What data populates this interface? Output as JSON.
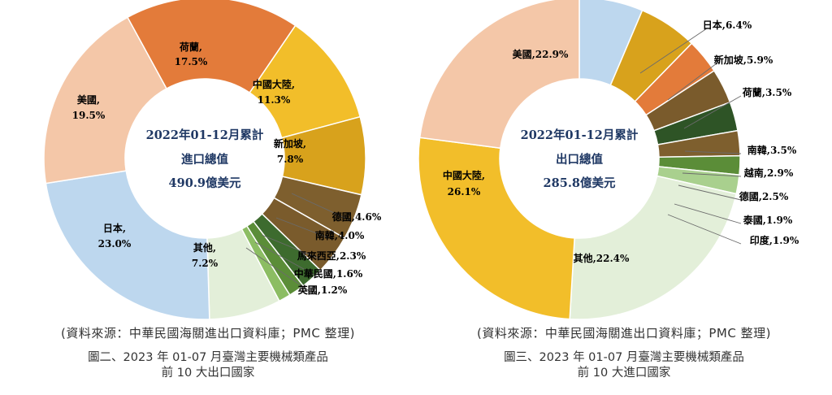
{
  "colors": {
    "荷蘭": "#E37B3A",
    "中國大陸": "#F2BE2A",
    "新加坡": "#D8A21C",
    "德國": "#7E5F2E",
    "南韓": "#7A5B2C",
    "越南": "#2E5426",
    "馬來西亞": "#3D6B2E",
    "中華民國": "#5B8D38",
    "英國": "#8CBD63",
    "泰國": "#5B8D38",
    "印度": "#A9D08E",
    "其他": "#E3EFD9",
    "日本": "#BDD7EE",
    "美國": "#F4C7A8"
  },
  "chart_data": [
    {
      "type": "pie",
      "donut": true,
      "center": {
        "line1": "2022年01-12月累計",
        "line2": "進口總值",
        "line3": "490.9億美元"
      },
      "slices": [
        {
          "name": "荷蘭",
          "value": 17.5,
          "label": "荷蘭,",
          "value_label": "17.5%"
        },
        {
          "name": "中國大陸",
          "value": 11.3,
          "label": "中國大陸,",
          "value_label": "11.3%"
        },
        {
          "name": "新加坡",
          "value": 7.8,
          "label": "新加坡,",
          "value_label": "7.8%"
        },
        {
          "name": "德國",
          "value": 4.6,
          "label": "德國,4.6%"
        },
        {
          "name": "南韓",
          "value": 4.0,
          "label": "南韓,4.0%"
        },
        {
          "name": "馬來西亞",
          "value": 2.3,
          "label": "馬來西亞,2.3%"
        },
        {
          "name": "中華民國",
          "value": 1.6,
          "label": "中華民國,1.6%"
        },
        {
          "name": "英國",
          "value": 1.2,
          "label": "英國,1.2%"
        },
        {
          "name": "其他",
          "value": 7.2,
          "label": "其他,",
          "value_label": "7.2%"
        },
        {
          "name": "日本",
          "value": 23.0,
          "label": "日本,",
          "value_label": "23.0%"
        },
        {
          "name": "美國",
          "value": 19.5,
          "label": "美國,",
          "value_label": "19.5%"
        }
      ],
      "source": "(資料來源：中華民國海關進出口資料庫；PMC 整理)",
      "caption_line1": "圖二、2023 年 01-07 月臺灣主要機械類產品",
      "caption_line2": "前 10 大出口國家"
    },
    {
      "type": "pie",
      "donut": true,
      "center": {
        "line1": "2022年01-12月累計",
        "line2": "出口總值",
        "line3": "285.8億美元"
      },
      "slices": [
        {
          "name": "日本",
          "value": 6.4,
          "label": "日本,6.4%"
        },
        {
          "name": "新加坡",
          "value": 5.9,
          "label": "新加坡,5.9%"
        },
        {
          "name": "荷蘭",
          "value": 3.5,
          "label": "荷蘭,3.5%"
        },
        {
          "name": "南韓",
          "value": 3.5,
          "label": "南韓,3.5%"
        },
        {
          "name": "越南",
          "value": 2.9,
          "label": "越南,2.9%"
        },
        {
          "name": "德國",
          "value": 2.5,
          "label": "德國,2.5%"
        },
        {
          "name": "泰國",
          "value": 1.9,
          "label": "泰國,1.9%"
        },
        {
          "name": "印度",
          "value": 1.9,
          "label": "印度,1.9%"
        },
        {
          "name": "其他",
          "value": 22.4,
          "label": "其他,22.4%"
        },
        {
          "name": "中國大陸",
          "value": 26.1,
          "label": "中國大陸,",
          "value_label": "26.1%"
        },
        {
          "name": "美國",
          "value": 22.9,
          "label": "美國,22.9%"
        }
      ],
      "source": "(資料來源：中華民國海關進出口資料庫；PMC 整理)",
      "caption_line1": "圖三、2023 年 01-07 月臺灣主要機械類產品",
      "caption_line2": "前 10 大進口國家"
    }
  ]
}
